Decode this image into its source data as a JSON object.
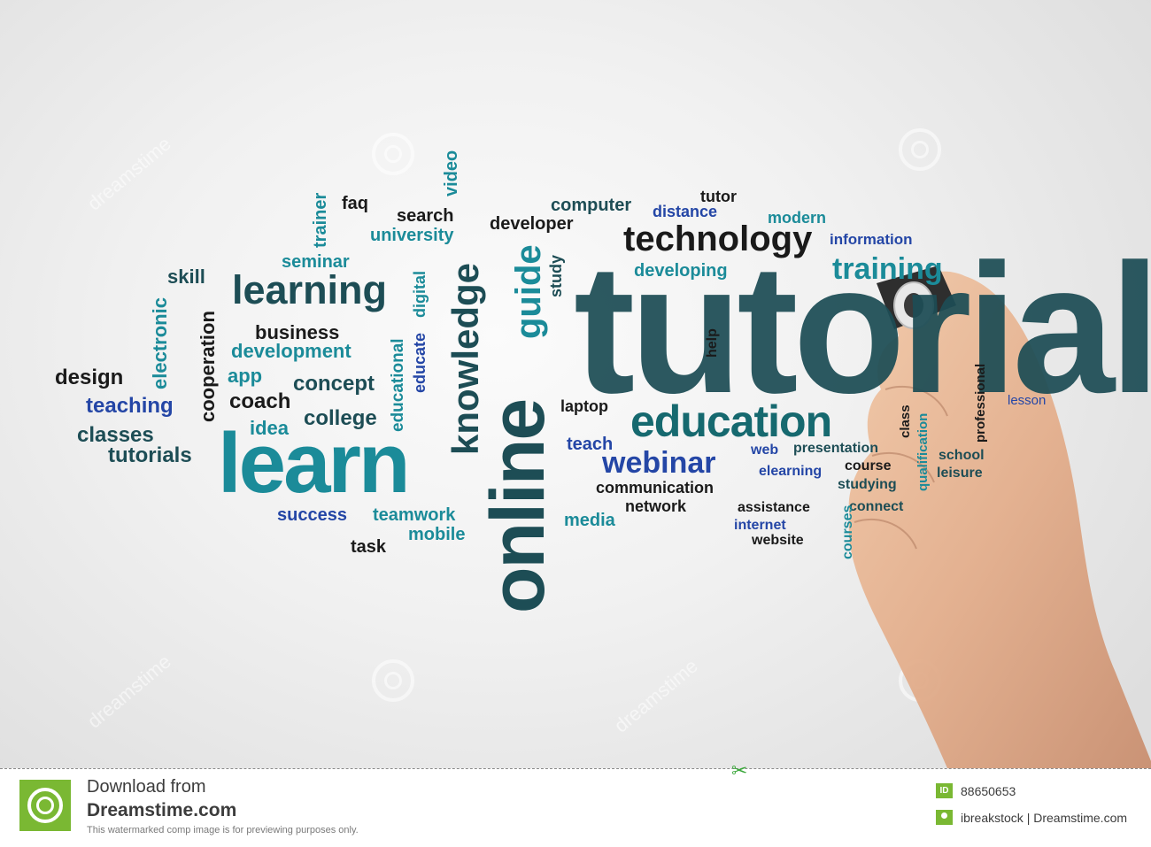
{
  "words": {
    "tutorial": "tutorial",
    "online": "online",
    "learn": "learn",
    "education": "education",
    "learning": "learning",
    "knowledge": "knowledge",
    "technology": "technology",
    "guide": "guide",
    "training": "training",
    "webinar": "webinar",
    "development": "development",
    "business": "business",
    "teaching": "teaching",
    "design": "design",
    "classes": "classes",
    "tutorials": "tutorials",
    "concept": "concept",
    "college": "college",
    "coach": "coach",
    "idea": "idea",
    "app": "app",
    "cooperation": "cooperation",
    "electronic": "electronic",
    "skill": "skill",
    "seminar": "seminar",
    "trainer": "trainer",
    "faq": "faq",
    "search": "search",
    "university": "university",
    "video": "video",
    "developer": "developer",
    "computer": "computer",
    "distance": "distance",
    "tutor": "tutor",
    "modern": "modern",
    "information": "information",
    "developing": "developing",
    "study": "study",
    "help": "help",
    "laptop": "laptop",
    "teach": "teach",
    "communication": "communication",
    "network": "network",
    "media": "media",
    "success": "success",
    "teamwork": "teamwork",
    "mobile": "mobile",
    "task": "task",
    "web": "web",
    "presentation": "presentation",
    "elearning": "elearning",
    "course": "course",
    "studying": "studying",
    "connect": "connect",
    "assistance": "assistance",
    "internet": "internet",
    "website": "website",
    "courses": "courses",
    "class": "class",
    "qualification": "qualification",
    "professional": "professional",
    "school": "school",
    "leisure": "leisure",
    "lesson": "lesson",
    "educational": "educational",
    "educate": "educate",
    "digital": "digital"
  },
  "watermark_text": "dreamstime",
  "footer": {
    "download_label": "Download from",
    "site": "Dreamstime.com",
    "note": "This watermarked comp image is for previewing purposes only.",
    "id_badge": "ID",
    "image_id": "88650653",
    "credit": "ibreakstock | Dreamstime.com"
  },
  "colors": {
    "dark_teal": "#1d4d55",
    "teal": "#1b8b99",
    "blue": "#2446a6",
    "black": "#1a1a1a",
    "brand_green": "#7ab833"
  }
}
